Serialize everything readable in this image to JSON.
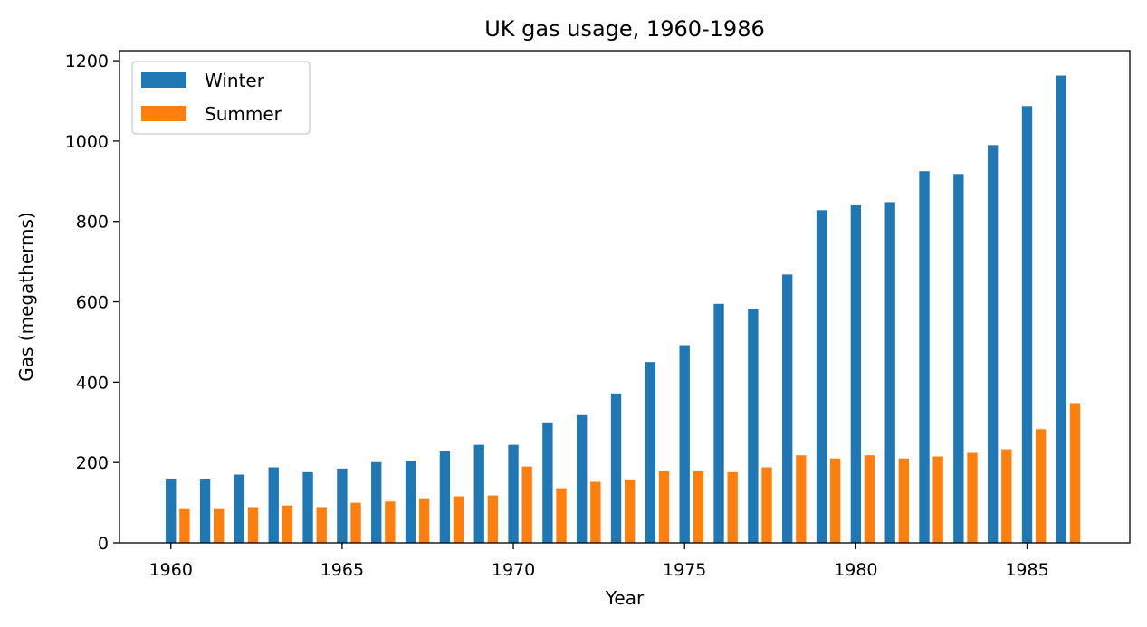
{
  "chart_data": {
    "type": "bar",
    "title": "UK gas usage, 1960-1986",
    "xlabel": "Year",
    "ylabel": "Gas (megatherms)",
    "x": [
      1960,
      1961,
      1962,
      1963,
      1964,
      1965,
      1966,
      1967,
      1968,
      1969,
      1970,
      1971,
      1972,
      1973,
      1974,
      1975,
      1976,
      1977,
      1978,
      1979,
      1980,
      1981,
      1982,
      1983,
      1984,
      1985,
      1986
    ],
    "xticks": [
      1960,
      1965,
      1970,
      1975,
      1980,
      1985
    ],
    "yticks": [
      0,
      200,
      400,
      600,
      800,
      1000,
      1200
    ],
    "xlim": [
      1958.5,
      1988
    ],
    "ylim": [
      0,
      1225
    ],
    "legend_position": "upper-left",
    "grid": false,
    "series": [
      {
        "name": "Winter",
        "color": "#1f77b4",
        "values": [
          160,
          160,
          170,
          188,
          176,
          185,
          201,
          205,
          228,
          244,
          244,
          300,
          318,
          372,
          450,
          492,
          595,
          583,
          668,
          828,
          840,
          848,
          925,
          918,
          990,
          1087,
          1163
        ]
      },
      {
        "name": "Summer",
        "color": "#ff7f0e",
        "values": [
          84,
          84,
          89,
          93,
          89,
          100,
          103,
          111,
          116,
          118,
          190,
          136,
          152,
          158,
          178,
          178,
          176,
          188,
          218,
          210,
          218,
          210,
          215,
          224,
          233,
          283,
          348
        ]
      }
    ]
  }
}
